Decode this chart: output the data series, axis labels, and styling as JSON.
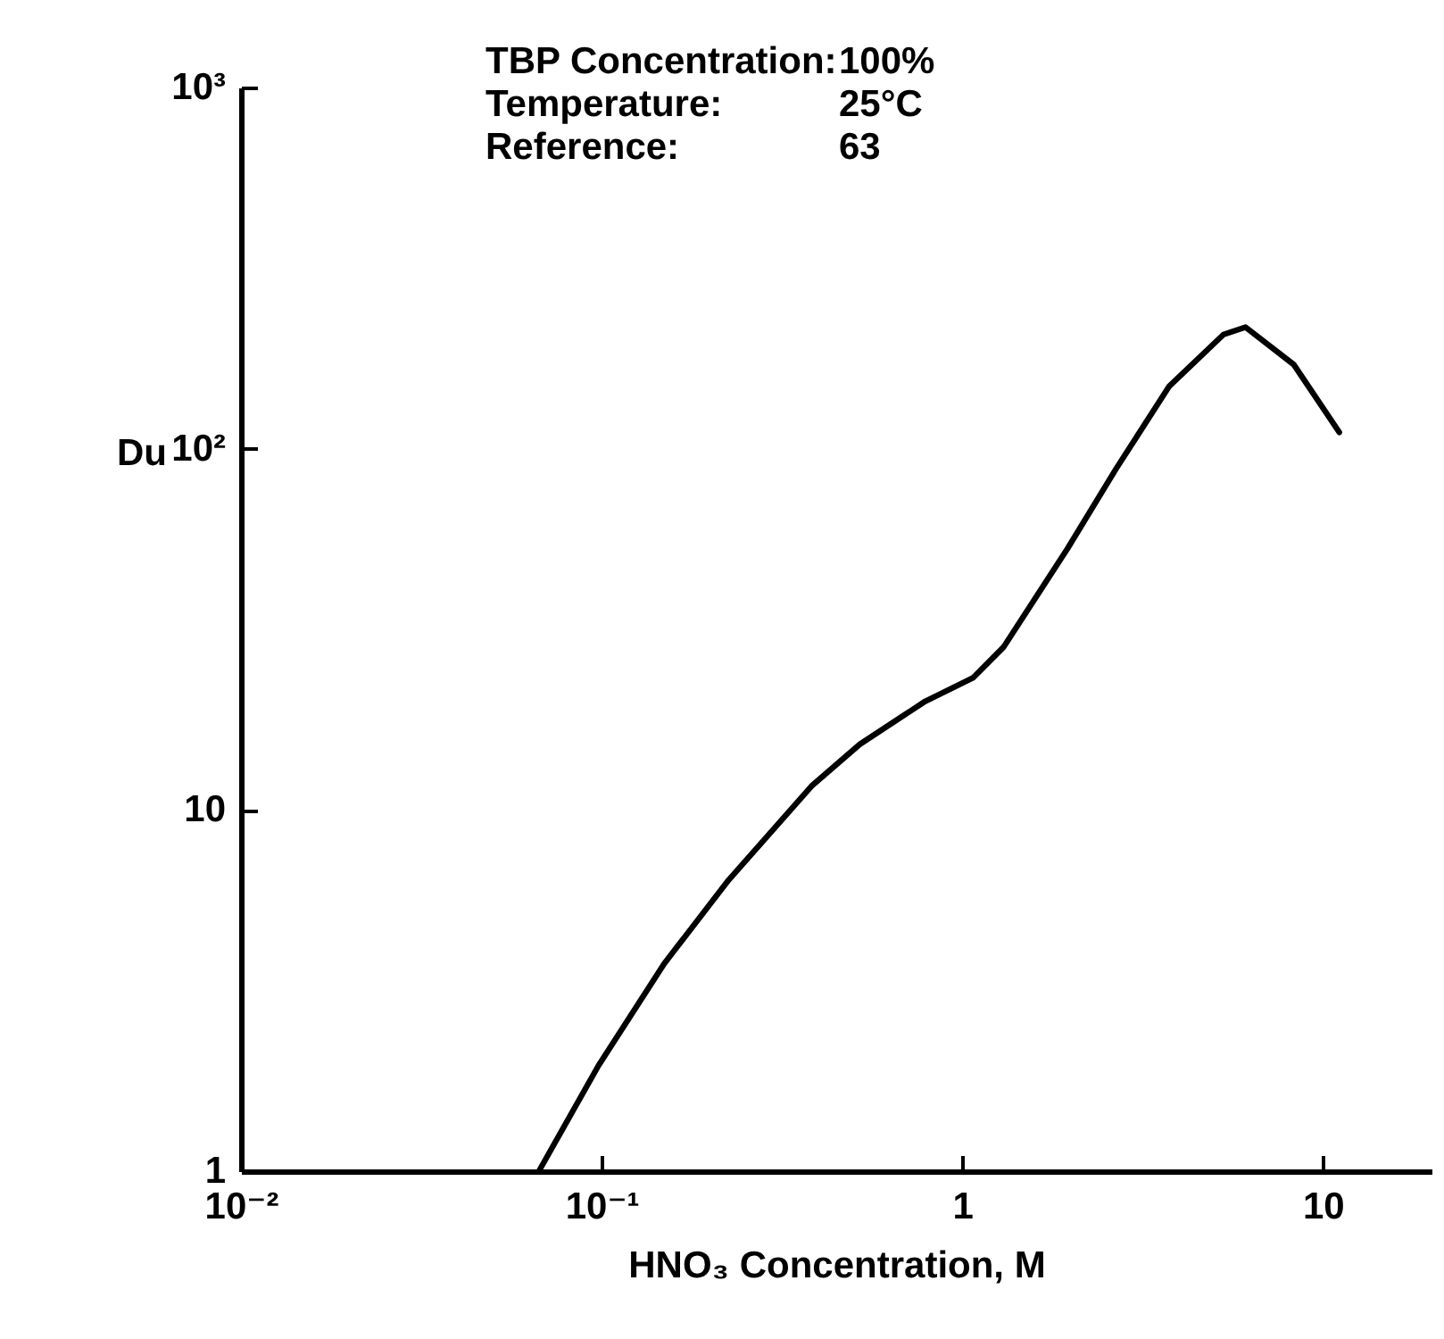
{
  "chart_data": {
    "type": "line",
    "xlabel": "HNO₃ Concentration, M",
    "ylabel": "Du",
    "annotations": [
      "TBP Concentration:",
      "100%",
      "Temperature:",
      "25°C",
      "Reference:",
      "63"
    ],
    "log": "xy",
    "grid": false,
    "marker": "none",
    "line_style": "solid",
    "xlim": [
      0.01,
      20
    ],
    "xticks": [
      {
        "value": 0.01,
        "label": "10⁻²"
      },
      {
        "value": 0.1,
        "label": "10⁻¹"
      },
      1,
      10
    ],
    "ylim": [
      1,
      1000
    ],
    "yticks": [
      1,
      10,
      {
        "value": 100,
        "label": "10²"
      },
      {
        "value": 1000,
        "label": "10³"
      }
    ],
    "series": [
      {
        "color": "#000000",
        "x": [
          0.067,
          0.098,
          0.149,
          0.225,
          0.384,
          0.52,
          0.79,
          1.07,
          1.3,
          1.96,
          2.67,
          3.75,
          5.3,
          6.1,
          8.3,
          11.1
        ],
        "values": [
          1,
          1.96,
          3.75,
          6.4,
          11.7,
          15.2,
          20,
          23.2,
          28.2,
          53,
          88,
          149,
          207,
          217,
          171,
          111
        ]
      }
    ]
  }
}
